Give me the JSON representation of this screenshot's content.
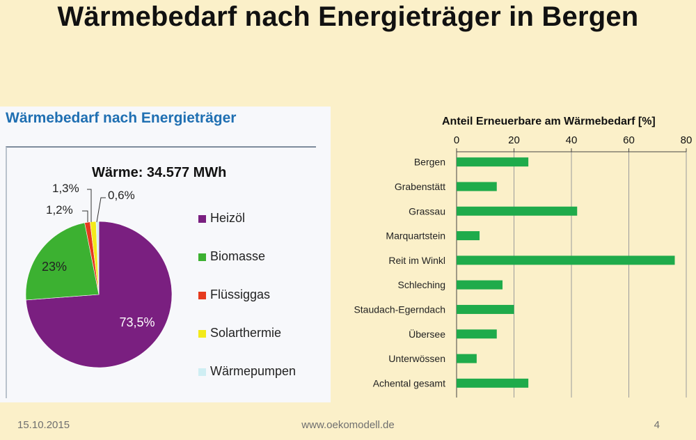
{
  "slide": {
    "title": "Wärmebedarf nach Energieträger in Bergen",
    "footer_date": "15.10.2015",
    "footer_url": "www.oekomodell.de",
    "page_number": "4"
  },
  "colors": {
    "background": "#fbf0c9",
    "heizoel": "#7a1f80",
    "biomasse": "#3cb131",
    "fluessiggas": "#e63a1e",
    "solarthermie": "#f3ea1a",
    "waermepumpen": "#cfeef3",
    "bar": "#1fab4b",
    "panel_title": "#1f6fb2"
  },
  "chart_data": [
    {
      "type": "pie",
      "title": "Wärmebedarf nach Energieträger",
      "subtitle": "Wärme: 34.577 MWh",
      "slices": [
        {
          "name": "Heizöl",
          "value": 73.5,
          "label": "73,5%",
          "color": "#7a1f80"
        },
        {
          "name": "Biomasse",
          "value": 23,
          "label": "23%",
          "color": "#3cb131"
        },
        {
          "name": "Flüssiggas",
          "value": 1.2,
          "label": "1,2%",
          "color": "#e63a1e"
        },
        {
          "name": "Solarthermie",
          "value": 1.3,
          "label": "1,3%",
          "color": "#f3ea1a"
        },
        {
          "name": "Wärmepumpen",
          "value": 0.6,
          "label": "0,6%",
          "color": "#cfeef3"
        }
      ],
      "legend_position": "right"
    },
    {
      "type": "bar",
      "orientation": "horizontal",
      "title": "Anteil Erneuerbare am Wärmebedarf [%]",
      "categories": [
        "Bergen",
        "Grabenstätt",
        "Grassau",
        "Marquartstein",
        "Reit im Winkl",
        "Schleching",
        "Staudach-Egerndach",
        "Übersee",
        "Unterwössen",
        "Achental gesamt"
      ],
      "values": [
        25,
        14,
        42,
        8,
        76,
        16,
        20,
        14,
        7,
        25
      ],
      "xlim": [
        0,
        80
      ],
      "xticks": [
        "0",
        "20",
        "40",
        "60",
        "80"
      ],
      "axis_position": "top",
      "grid": true
    }
  ]
}
